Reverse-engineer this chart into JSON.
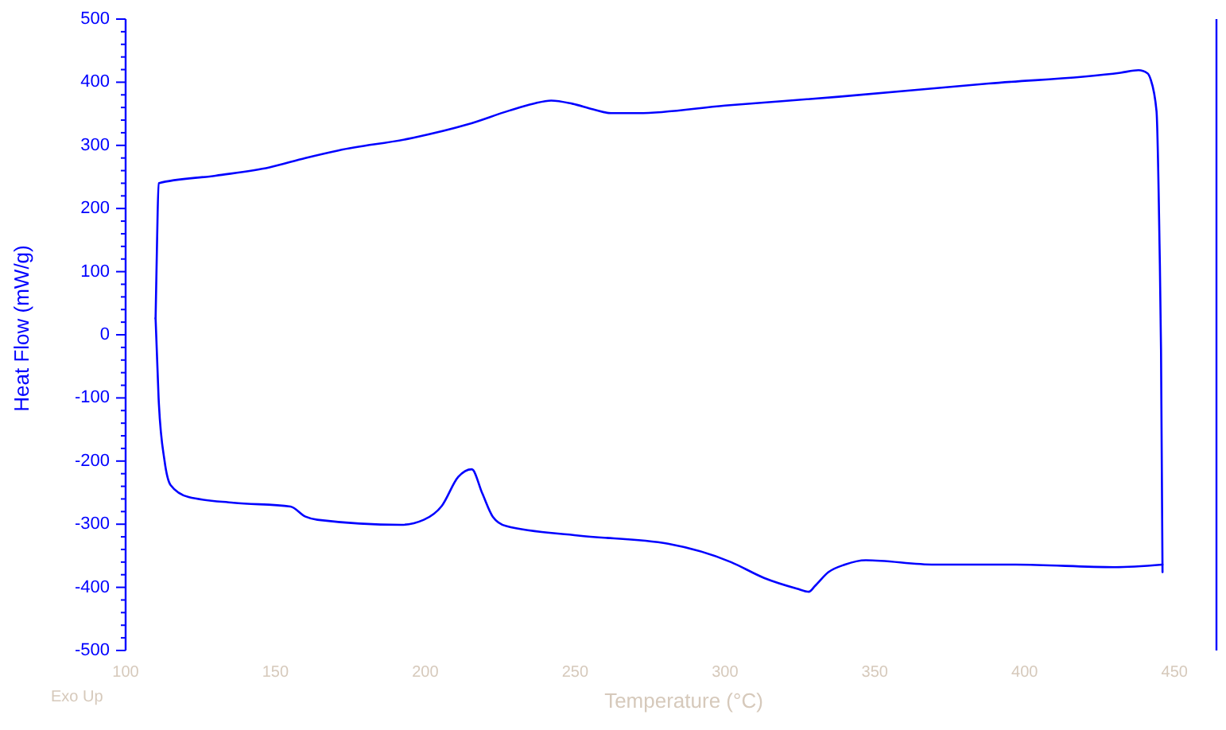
{
  "chart_data": {
    "type": "line",
    "xlabel": "Temperature (°C)",
    "ylabel": "Heat Flow (mW/g)",
    "annotations": [
      "Exo Up"
    ],
    "xlim": [
      100,
      464
    ],
    "xticks": [
      100,
      150,
      200,
      250,
      300,
      350,
      400,
      450
    ],
    "ylim": [
      -500,
      500
    ],
    "yticks": [
      -500,
      {
        "value": -480,
        "label": null
      },
      {
        "value": -460,
        "label": null
      },
      {
        "value": -440,
        "label": null
      },
      {
        "value": -420,
        "label": null
      },
      -400,
      {
        "value": -380,
        "label": null
      },
      {
        "value": -360,
        "label": null
      },
      {
        "value": -340,
        "label": null
      },
      {
        "value": -320,
        "label": null
      },
      -300,
      {
        "value": -280,
        "label": null
      },
      {
        "value": -260,
        "label": null
      },
      {
        "value": -240,
        "label": null
      },
      {
        "value": -220,
        "label": null
      },
      -200,
      {
        "value": -180,
        "label": null
      },
      {
        "value": -160,
        "label": null
      },
      {
        "value": -140,
        "label": null
      },
      {
        "value": -120,
        "label": null
      },
      -100,
      {
        "value": -80,
        "label": null
      },
      {
        "value": -60,
        "label": null
      },
      {
        "value": -40,
        "label": null
      },
      {
        "value": -20,
        "label": null
      },
      0,
      {
        "value": 20,
        "label": null
      },
      {
        "value": 40,
        "label": null
      },
      {
        "value": 60,
        "label": null
      },
      {
        "value": 80,
        "label": null
      },
      100,
      {
        "value": 120,
        "label": null
      },
      {
        "value": 140,
        "label": null
      },
      {
        "value": 160,
        "label": null
      },
      {
        "value": 180,
        "label": null
      },
      200,
      {
        "value": 220,
        "label": null
      },
      {
        "value": 240,
        "label": null
      },
      {
        "value": 260,
        "label": null
      },
      {
        "value": 280,
        "label": null
      },
      300,
      {
        "value": 320,
        "label": null
      },
      {
        "value": 340,
        "label": null
      },
      {
        "value": 360,
        "label": null
      },
      {
        "value": 380,
        "label": null
      },
      400,
      {
        "value": 420,
        "label": null
      },
      {
        "value": 440,
        "label": null
      },
      {
        "value": 460,
        "label": null
      },
      {
        "value": 480,
        "label": null
      },
      500
    ],
    "series": [
      {
        "color": "#0000ff",
        "x": [
          110,
          110.5,
          111,
          130,
          148,
          160,
          171,
          196,
          214,
          228,
          236,
          242,
          249,
          256,
          262,
          271,
          300,
          338,
          388,
          432,
          438,
          441,
          442,
          444,
          445,
          445.5,
          446
        ],
        "values": [
          26,
          150,
          240,
          252,
          265,
          280,
          292,
          312,
          333,
          355,
          366,
          371,
          366,
          357,
          351,
          351,
          363,
          377,
          398,
          415,
          419,
          414,
          405,
          354,
          144,
          -24,
          -376
        ]
      },
      {
        "color": "#0000ff",
        "x": [
          446,
          430,
          397,
          370,
          347,
          340,
          334.5,
          330,
          328,
          324,
          313,
          302,
          281,
          251,
          227,
          222.5,
          219,
          215.5,
          211,
          205.5,
          199.5,
          192,
          164,
          160,
          155,
          136,
          121,
          115,
          113,
          111,
          110
        ],
        "values": [
          -364,
          -368,
          -364,
          -364,
          -357,
          -364,
          -376,
          -398,
          -407,
          -402,
          -385,
          -360,
          -331,
          -318,
          -303,
          -288,
          -251,
          -213,
          -225,
          -271,
          -293,
          -301,
          -293,
          -288,
          -272,
          -266,
          -257,
          -238,
          -200,
          -100,
          26
        ]
      }
    ]
  }
}
